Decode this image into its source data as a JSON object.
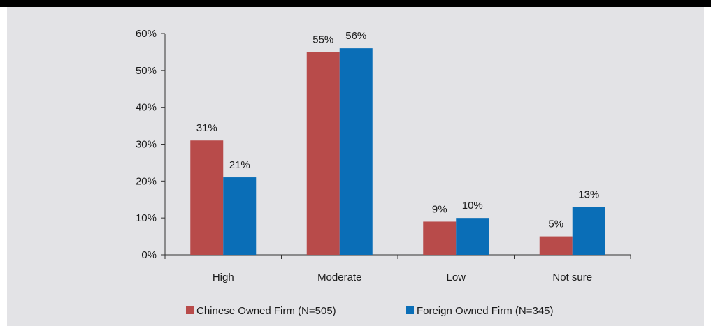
{
  "chart_data": {
    "type": "bar",
    "categories": [
      "High",
      "Moderate",
      "Low",
      "Not sure"
    ],
    "series": [
      {
        "name": "Chinese Owned Firm (N=505)",
        "values": [
          31,
          55,
          9,
          5
        ],
        "labels": [
          "31%",
          "55%",
          "9%",
          "5%"
        ],
        "color": "#b84b4a"
      },
      {
        "name": "Foreign Owned Firm (N=345)",
        "values": [
          21,
          56,
          10,
          13
        ],
        "labels": [
          "21%",
          "56%",
          "10%",
          "13%"
        ],
        "color": "#0a6eb7"
      }
    ],
    "ylim": [
      0,
      60
    ],
    "yticks": [
      0,
      10,
      20,
      30,
      40,
      50,
      60
    ],
    "ytick_labels": [
      "0%",
      "10%",
      "20%",
      "30%",
      "40%",
      "50%",
      "60%"
    ],
    "grid": false,
    "legend_position": "bottom"
  },
  "colors": {
    "background": "#e3e3e6",
    "header_bar": "#000000",
    "axis": "#333333"
  }
}
